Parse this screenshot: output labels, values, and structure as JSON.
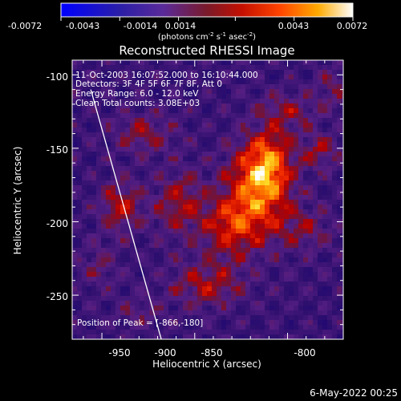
{
  "chart_data": {
    "type": "heatmap",
    "title": "Reconstructed RHESSI Image",
    "colorbar": {
      "ticks": [
        -0.0072,
        -0.0043,
        -0.0014,
        0.0014,
        0.0043,
        0.0072
      ],
      "tick_labels": [
        "-0.0072",
        "-0.0043",
        "-0.0014",
        "0.0014",
        "0.0043",
        "0.0072"
      ],
      "units_parts": [
        "(photons cm",
        "-2",
        " s",
        "-1",
        " asec",
        "-2",
        ")"
      ],
      "range": [
        -0.0072,
        0.0072
      ]
    },
    "xlabel": "Heliocentric X (arcsec)",
    "ylabel": "Heliocentric Y (arcsec)",
    "xlim": [
      -966,
      -820
    ],
    "ylim": [
      -280,
      -90
    ],
    "xticks": [
      -950,
      -900,
      -850,
      -800
    ],
    "xtick_labels": [
      "-950",
      "-900",
      "-850",
      "-800"
    ],
    "yticks": [
      -100,
      -150,
      -200,
      -250
    ],
    "ytick_labels": [
      "-100",
      "-150",
      "-200",
      "-250"
    ],
    "annotations": [
      "11-Oct-2003 16:07:52.000 to 16:10:44.000",
      "Detectors: 3F 4F 5F 6F 7F 8F, Att 0",
      "Energy Range: 6.0 - 12.0 keV",
      "Clean    Total counts: 3.08E+03"
    ],
    "peak_label": "Position of Peak = [-866,-180]",
    "peak": [
      -866,
      -180
    ],
    "limb_line": [
      [
        -956,
        -110
      ],
      [
        -918,
        -280
      ]
    ],
    "sources": [
      {
        "x": -866,
        "y": -180,
        "sx": 12,
        "sy": 22,
        "amp": 0.0068
      },
      {
        "x": -860,
        "y": -158,
        "sx": 9,
        "sy": 15,
        "amp": 0.0045
      },
      {
        "x": -882,
        "y": -205,
        "sx": 10,
        "sy": 14,
        "amp": 0.004
      },
      {
        "x": -908,
        "y": -188,
        "sx": 10,
        "sy": 16,
        "amp": 0.0036
      },
      {
        "x": -940,
        "y": -190,
        "sx": 8,
        "sy": 12,
        "amp": 0.0042
      },
      {
        "x": -927,
        "y": -140,
        "sx": 12,
        "sy": 10,
        "amp": 0.003
      },
      {
        "x": -850,
        "y": -125,
        "sx": 10,
        "sy": 9,
        "amp": 0.003
      },
      {
        "x": -832,
        "y": -152,
        "sx": 7,
        "sy": 8,
        "amp": 0.0033
      },
      {
        "x": -893,
        "y": -243,
        "sx": 14,
        "sy": 11,
        "amp": 0.0036
      },
      {
        "x": -840,
        "y": -205,
        "sx": 10,
        "sy": 10,
        "amp": 0.0026
      },
      {
        "x": -825,
        "y": -110,
        "sx": 8,
        "sy": 10,
        "amp": 0.0022
      },
      {
        "x": -952,
        "y": -230,
        "sx": 7,
        "sy": 10,
        "amp": 0.002
      },
      {
        "x": -930,
        "y": -262,
        "sx": 9,
        "sy": 8,
        "amp": 0.0018
      }
    ],
    "colors": {
      "background": "#000000",
      "text": "#ffffff",
      "limb": "#ffffff"
    }
  },
  "footer": {
    "date": "6-May-2022 00:25"
  }
}
